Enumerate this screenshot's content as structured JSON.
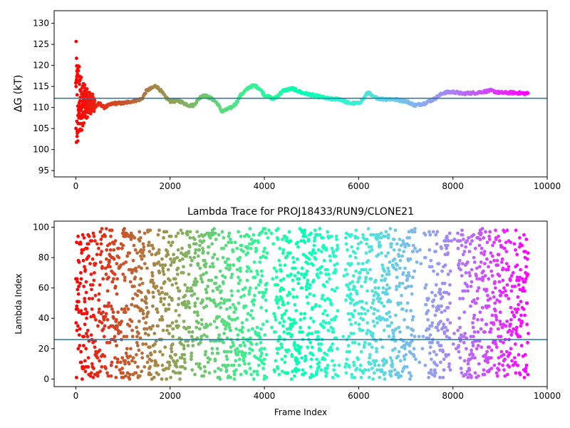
{
  "colors": {
    "reference_line": "#1f77b4",
    "colormap": "rainbow",
    "background": "#ffffff",
    "axes": "#000000"
  },
  "chart_data": [
    {
      "type": "scatter",
      "title": "",
      "xlabel": "",
      "ylabel": "ΔG (kT)",
      "xlim": [
        -460,
        10000
      ],
      "ylim": [
        93.5,
        133
      ],
      "xticks": [
        0,
        2000,
        4000,
        6000,
        8000,
        10000
      ],
      "yticks": [
        95,
        100,
        105,
        110,
        115,
        120,
        125,
        130
      ],
      "xtick_labels": [
        "0",
        "2000",
        "4000",
        "6000",
        "8000",
        "10000"
      ],
      "ytick_labels": [
        "95",
        "100",
        "105",
        "110",
        "115",
        "120",
        "125",
        "130"
      ],
      "reference_line_y": 112.2,
      "point_color": "rainbow colormap reversed along frame index (red at 0, violet at ~9600)",
      "series_trace": [
        [
          0,
          130
        ],
        [
          20,
          120
        ],
        [
          40,
          110
        ],
        [
          60,
          100
        ],
        [
          80,
          118
        ],
        [
          100,
          112
        ],
        [
          150,
          106
        ],
        [
          200,
          111
        ],
        [
          250,
          100
        ],
        [
          300,
          108
        ],
        [
          400,
          110
        ],
        [
          500,
          111
        ],
        [
          600,
          110
        ],
        [
          800,
          111
        ],
        [
          1000,
          111
        ],
        [
          1200,
          111.5
        ],
        [
          1400,
          112
        ],
        [
          1500,
          114
        ],
        [
          1600,
          114.5
        ],
        [
          1700,
          115.2
        ],
        [
          1800,
          114
        ],
        [
          1900,
          112.5
        ],
        [
          2000,
          111.5
        ],
        [
          2200,
          111.5
        ],
        [
          2400,
          110.5
        ],
        [
          2500,
          110.5
        ],
        [
          2600,
          112
        ],
        [
          2700,
          113
        ],
        [
          2800,
          112.5
        ],
        [
          2900,
          112
        ],
        [
          3000,
          111
        ],
        [
          3100,
          109
        ],
        [
          3200,
          109.5
        ],
        [
          3300,
          110
        ],
        [
          3400,
          111
        ],
        [
          3500,
          113
        ],
        [
          3600,
          114
        ],
        [
          3700,
          115
        ],
        [
          3800,
          115.2
        ],
        [
          3900,
          114.5
        ],
        [
          4000,
          113
        ],
        [
          4200,
          112
        ],
        [
          4400,
          114
        ],
        [
          4600,
          114.5
        ],
        [
          4800,
          113.5
        ],
        [
          5000,
          113
        ],
        [
          5200,
          112.5
        ],
        [
          5400,
          112
        ],
        [
          5600,
          112
        ],
        [
          5800,
          111
        ],
        [
          6000,
          111
        ],
        [
          6100,
          112
        ],
        [
          6200,
          113.7
        ],
        [
          6300,
          112.5
        ],
        [
          6500,
          112
        ],
        [
          6700,
          112
        ],
        [
          7000,
          111.5
        ],
        [
          7200,
          110.5
        ],
        [
          7400,
          111
        ],
        [
          7600,
          112
        ],
        [
          7800,
          113.5
        ],
        [
          8000,
          113.7
        ],
        [
          8200,
          113.3
        ],
        [
          8500,
          113.5
        ],
        [
          8800,
          114
        ],
        [
          9000,
          113.5
        ],
        [
          9300,
          113.5
        ],
        [
          9600,
          113.3
        ]
      ]
    },
    {
      "type": "scatter",
      "title": "Lambda Trace for PROJ18433/RUN9/CLONE21",
      "xlabel": "Frame Index",
      "ylabel": "Lambda Index",
      "xlim": [
        -460,
        10000
      ],
      "ylim": [
        -5,
        104
      ],
      "xticks": [
        0,
        2000,
        4000,
        6000,
        8000,
        10000
      ],
      "yticks": [
        0,
        20,
        40,
        60,
        80,
        100
      ],
      "xtick_labels": [
        "0",
        "2000",
        "4000",
        "6000",
        "8000",
        "10000"
      ],
      "ytick_labels": [
        "0",
        "20",
        "40",
        "60",
        "80",
        "100"
      ],
      "reference_line_y": 26,
      "point_color": "rainbow colormap reversed along frame index (red at 0, violet at ~9600)",
      "frame_range": [
        0,
        9600
      ],
      "lambda_range": [
        0,
        99
      ],
      "sparse_gaps": [
        [
          4060,
          4200
        ],
        [
          5560,
          5720
        ],
        [
          7200,
          7400
        ],
        [
          7950,
          8100
        ]
      ]
    }
  ]
}
